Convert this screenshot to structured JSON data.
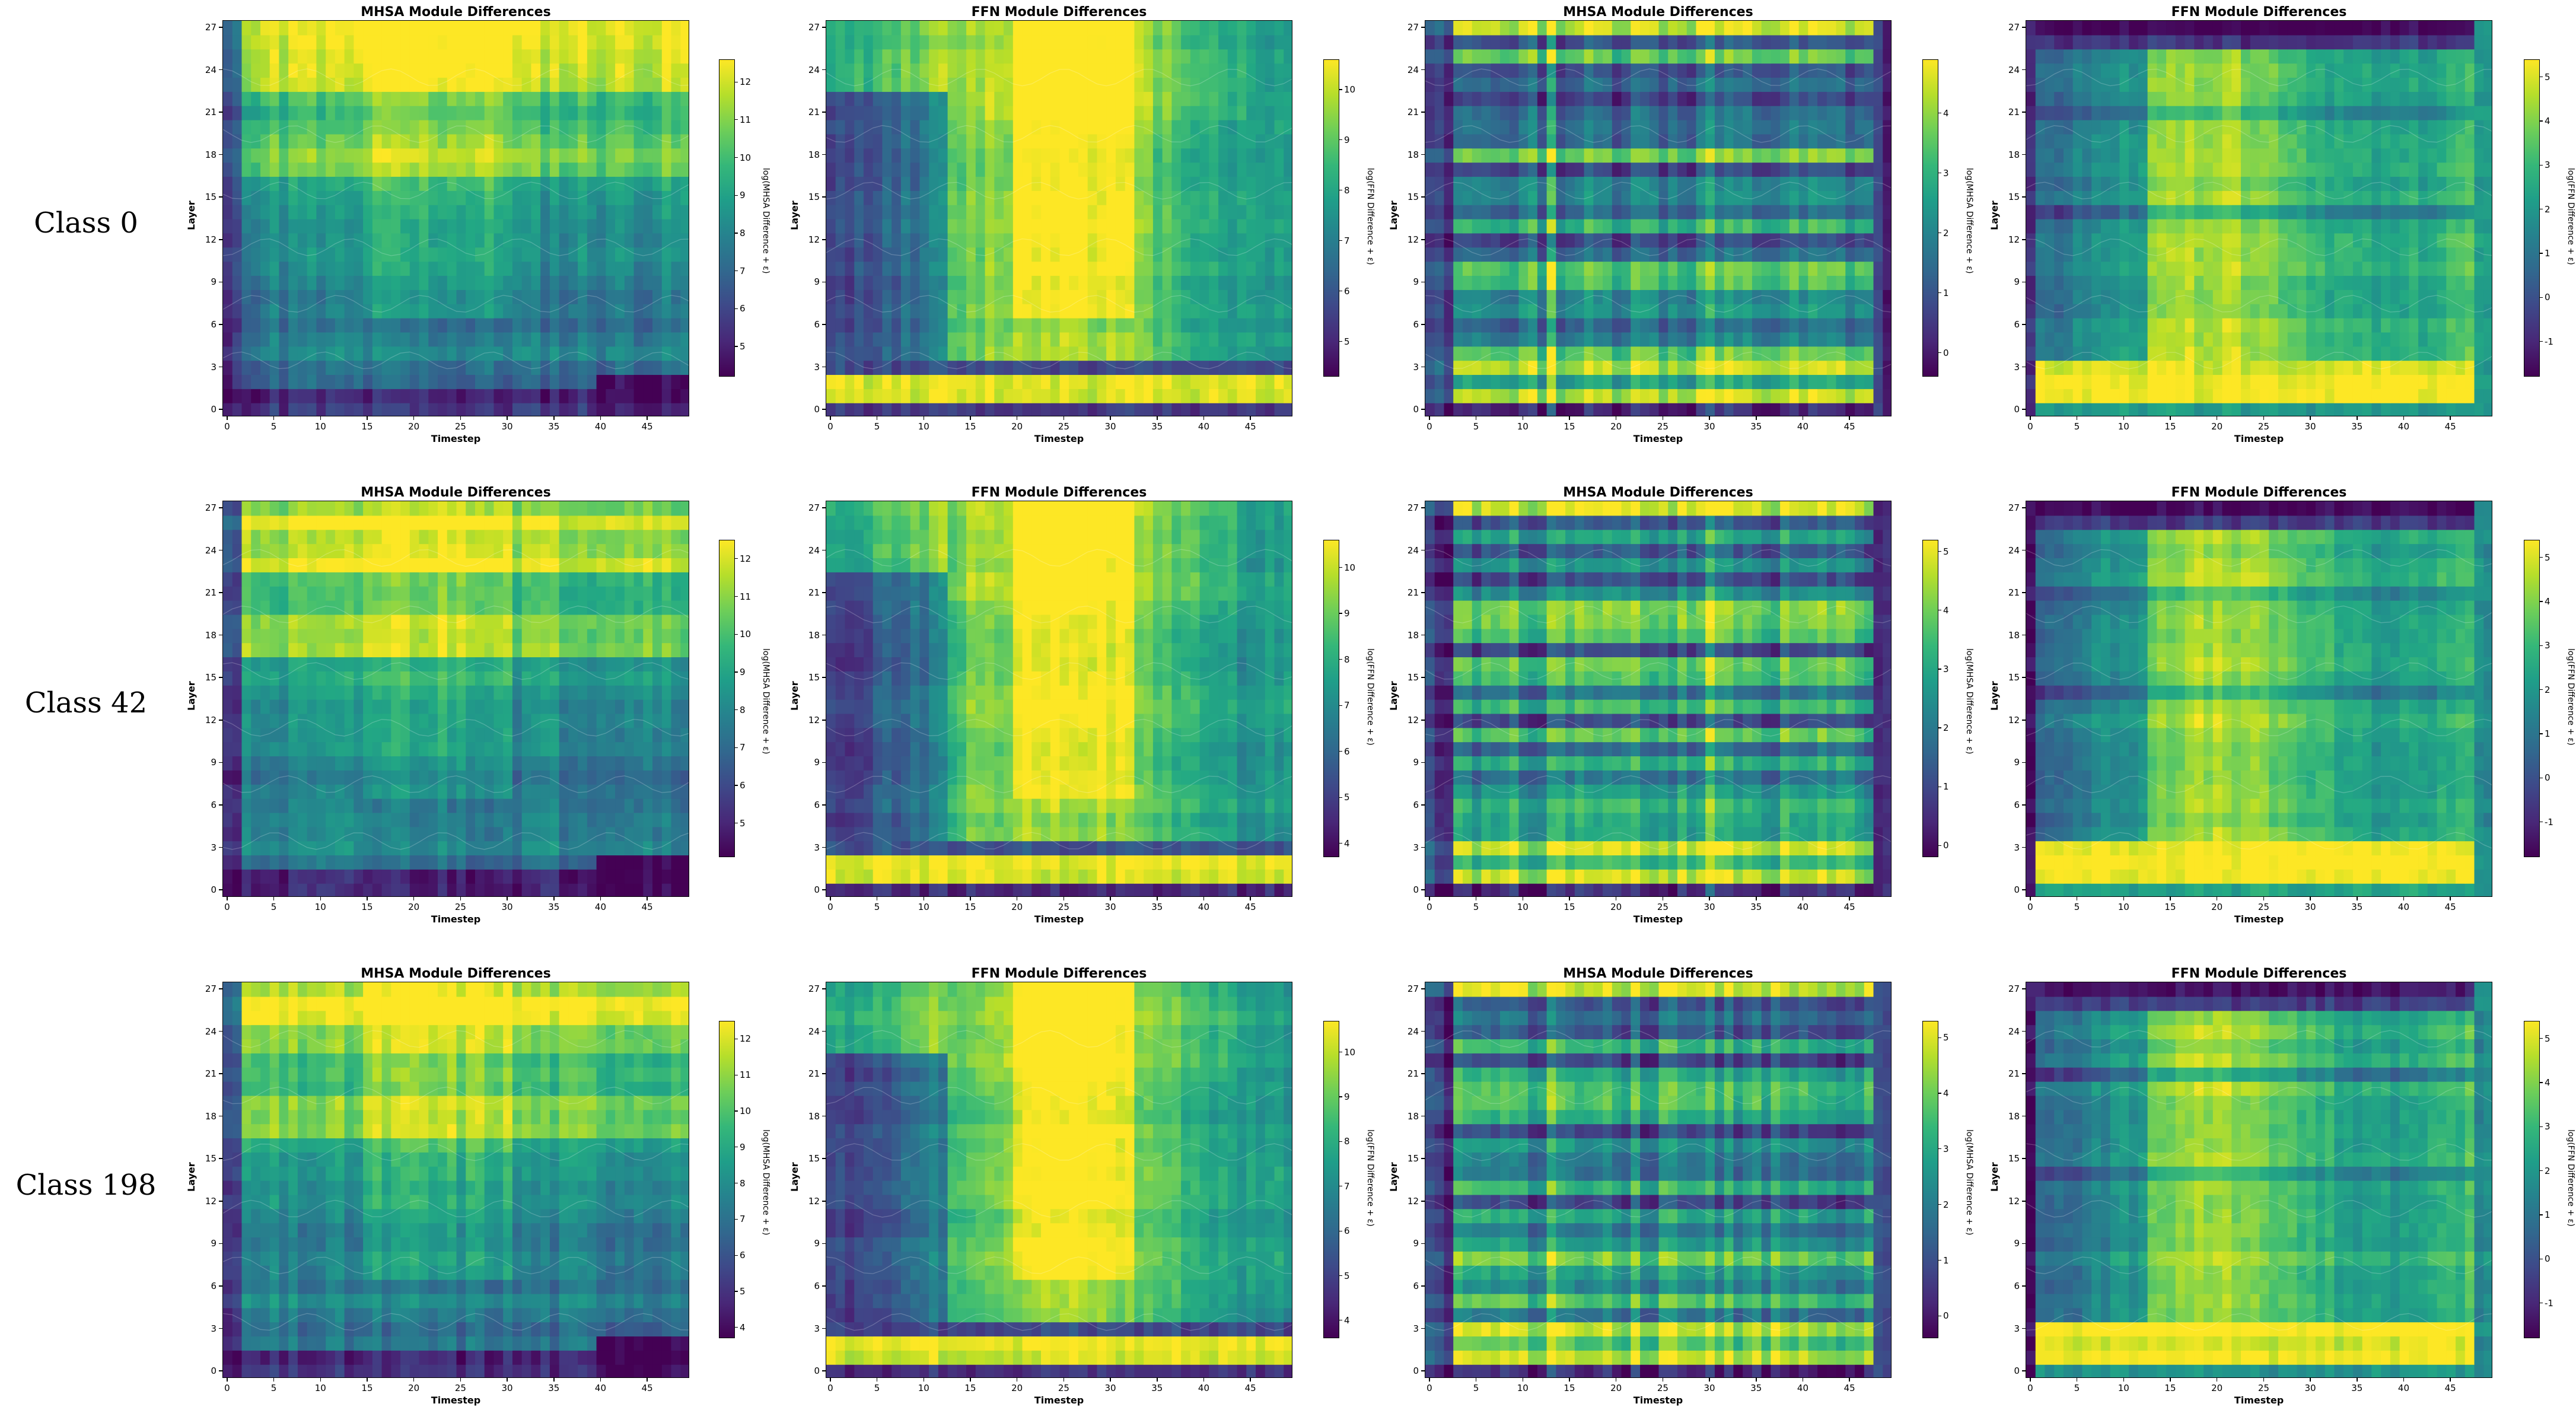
{
  "row_labels": [
    "Class 0",
    "Class 42",
    "Class 198"
  ],
  "colors": {
    "colormap": "viridis",
    "low": "#440154",
    "high": "#fde725"
  },
  "chart_data": [
    {
      "type": "heatmap",
      "row": 0,
      "col": 0,
      "title": "MHSA Module Differences",
      "xlabel": "Timestep",
      "ylabel": "Layer",
      "colorbar_label": "log(MHSA Difference + ε)",
      "x_ticks": [
        0,
        5,
        10,
        15,
        20,
        25,
        30,
        35,
        40,
        45
      ],
      "y_ticks": [
        0,
        3,
        6,
        9,
        12,
        15,
        18,
        21,
        24,
        27
      ],
      "xlim": [
        0,
        49
      ],
      "ylim": [
        0,
        27
      ],
      "cbar_ticks": [
        5,
        6,
        7,
        8,
        9,
        10,
        11,
        12
      ],
      "cbar_range": [
        4.2,
        12.6
      ],
      "pattern": "mhsa",
      "seed": 11
    },
    {
      "type": "heatmap",
      "row": 0,
      "col": 1,
      "title": "FFN Module Differences",
      "xlabel": "Timestep",
      "ylabel": "Layer",
      "colorbar_label": "log(FFN Difference + ε)",
      "x_ticks": [
        0,
        5,
        10,
        15,
        20,
        25,
        30,
        35,
        40,
        45
      ],
      "y_ticks": [
        0,
        3,
        6,
        9,
        12,
        15,
        18,
        21,
        24,
        27
      ],
      "xlim": [
        0,
        49
      ],
      "ylim": [
        0,
        27
      ],
      "cbar_ticks": [
        5,
        6,
        7,
        8,
        9,
        10
      ],
      "cbar_range": [
        4.3,
        10.6
      ],
      "pattern": "ffn",
      "seed": 12
    },
    {
      "type": "heatmap",
      "row": 0,
      "col": 2,
      "title": "MHSA Module Differences",
      "xlabel": "Timestep",
      "ylabel": "Layer",
      "colorbar_label": "log(MHSA Difference + ε)",
      "x_ticks": [
        0,
        5,
        10,
        15,
        20,
        25,
        30,
        35,
        40,
        45
      ],
      "y_ticks": [
        0,
        3,
        6,
        9,
        12,
        15,
        18,
        21,
        24,
        27
      ],
      "xlim": [
        0,
        49
      ],
      "ylim": [
        0,
        27
      ],
      "cbar_ticks": [
        0,
        1,
        2,
        3,
        4
      ],
      "cbar_range": [
        -0.4,
        4.9
      ],
      "pattern": "mhsa_norm",
      "seed": 13
    },
    {
      "type": "heatmap",
      "row": 0,
      "col": 3,
      "title": "FFN Module Differences",
      "xlabel": "Timestep",
      "ylabel": "Layer",
      "colorbar_label": "log(FFN Difference + ε)",
      "x_ticks": [
        0,
        5,
        10,
        15,
        20,
        25,
        30,
        35,
        40,
        45
      ],
      "y_ticks": [
        0,
        3,
        6,
        9,
        12,
        15,
        18,
        21,
        24,
        27
      ],
      "xlim": [
        0,
        49
      ],
      "ylim": [
        0,
        27
      ],
      "cbar_ticks": [
        -1,
        0,
        1,
        2,
        3,
        4,
        5
      ],
      "cbar_range": [
        -1.8,
        5.4
      ],
      "pattern": "ffn_norm",
      "seed": 14
    },
    {
      "type": "heatmap",
      "row": 1,
      "col": 0,
      "title": "MHSA Module Differences",
      "xlabel": "Timestep",
      "ylabel": "Layer",
      "colorbar_label": "log(MHSA Difference + ε)",
      "x_ticks": [
        0,
        5,
        10,
        15,
        20,
        25,
        30,
        35,
        40,
        45
      ],
      "y_ticks": [
        0,
        3,
        6,
        9,
        12,
        15,
        18,
        21,
        24,
        27
      ],
      "xlim": [
        0,
        49
      ],
      "ylim": [
        0,
        27
      ],
      "cbar_ticks": [
        5,
        6,
        7,
        8,
        9,
        10,
        11,
        12
      ],
      "cbar_range": [
        4.1,
        12.5
      ],
      "pattern": "mhsa",
      "seed": 21
    },
    {
      "type": "heatmap",
      "row": 1,
      "col": 1,
      "title": "FFN Module Differences",
      "xlabel": "Timestep",
      "ylabel": "Layer",
      "colorbar_label": "log(FFN Difference + ε)",
      "x_ticks": [
        0,
        5,
        10,
        15,
        20,
        25,
        30,
        35,
        40,
        45
      ],
      "y_ticks": [
        0,
        3,
        6,
        9,
        12,
        15,
        18,
        21,
        24,
        27
      ],
      "xlim": [
        0,
        49
      ],
      "ylim": [
        0,
        27
      ],
      "cbar_ticks": [
        4,
        5,
        6,
        7,
        8,
        9,
        10
      ],
      "cbar_range": [
        3.7,
        10.6
      ],
      "pattern": "ffn",
      "seed": 22
    },
    {
      "type": "heatmap",
      "row": 1,
      "col": 2,
      "title": "MHSA Module Differences",
      "xlabel": "Timestep",
      "ylabel": "Layer",
      "colorbar_label": "log(MHSA Difference + ε)",
      "x_ticks": [
        0,
        5,
        10,
        15,
        20,
        25,
        30,
        35,
        40,
        45
      ],
      "y_ticks": [
        0,
        3,
        6,
        9,
        12,
        15,
        18,
        21,
        24,
        27
      ],
      "xlim": [
        0,
        49
      ],
      "ylim": [
        0,
        27
      ],
      "cbar_ticks": [
        0,
        1,
        2,
        3,
        4,
        5
      ],
      "cbar_range": [
        -0.2,
        5.2
      ],
      "pattern": "mhsa_norm",
      "seed": 23
    },
    {
      "type": "heatmap",
      "row": 1,
      "col": 3,
      "title": "FFN Module Differences",
      "xlabel": "Timestep",
      "ylabel": "Layer",
      "colorbar_label": "log(FFN Difference + ε)",
      "x_ticks": [
        0,
        5,
        10,
        15,
        20,
        25,
        30,
        35,
        40,
        45
      ],
      "y_ticks": [
        0,
        3,
        6,
        9,
        12,
        15,
        18,
        21,
        24,
        27
      ],
      "xlim": [
        0,
        49
      ],
      "ylim": [
        0,
        27
      ],
      "cbar_ticks": [
        -1,
        0,
        1,
        2,
        3,
        4,
        5
      ],
      "cbar_range": [
        -1.8,
        5.4
      ],
      "pattern": "ffn_norm",
      "seed": 24
    },
    {
      "type": "heatmap",
      "row": 2,
      "col": 0,
      "title": "MHSA Module Differences",
      "xlabel": "Timestep",
      "ylabel": "Layer",
      "colorbar_label": "log(MHSA Difference + ε)",
      "x_ticks": [
        0,
        5,
        10,
        15,
        20,
        25,
        30,
        35,
        40,
        45
      ],
      "y_ticks": [
        0,
        3,
        6,
        9,
        12,
        15,
        18,
        21,
        24,
        27
      ],
      "xlim": [
        0,
        49
      ],
      "ylim": [
        0,
        27
      ],
      "cbar_ticks": [
        4,
        5,
        6,
        7,
        8,
        9,
        10,
        11,
        12
      ],
      "cbar_range": [
        3.7,
        12.5
      ],
      "pattern": "mhsa",
      "seed": 31
    },
    {
      "type": "heatmap",
      "row": 2,
      "col": 1,
      "title": "FFN Module Differences",
      "xlabel": "Timestep",
      "ylabel": "Layer",
      "colorbar_label": "log(FFN Difference + ε)",
      "x_ticks": [
        0,
        5,
        10,
        15,
        20,
        25,
        30,
        35,
        40,
        45
      ],
      "y_ticks": [
        0,
        3,
        6,
        9,
        12,
        15,
        18,
        21,
        24,
        27
      ],
      "xlim": [
        0,
        49
      ],
      "ylim": [
        0,
        27
      ],
      "cbar_ticks": [
        4,
        5,
        6,
        7,
        8,
        9,
        10
      ],
      "cbar_range": [
        3.6,
        10.7
      ],
      "pattern": "ffn",
      "seed": 32
    },
    {
      "type": "heatmap",
      "row": 2,
      "col": 2,
      "title": "MHSA Module Differences",
      "xlabel": "Timestep",
      "ylabel": "Layer",
      "colorbar_label": "log(MHSA Difference + ε)",
      "x_ticks": [
        0,
        5,
        10,
        15,
        20,
        25,
        30,
        35,
        40,
        45
      ],
      "y_ticks": [
        0,
        3,
        6,
        9,
        12,
        15,
        18,
        21,
        24,
        27
      ],
      "xlim": [
        0,
        49
      ],
      "ylim": [
        0,
        27
      ],
      "cbar_ticks": [
        0,
        1,
        2,
        3,
        4,
        5
      ],
      "cbar_range": [
        -0.4,
        5.3
      ],
      "pattern": "mhsa_norm",
      "seed": 33
    },
    {
      "type": "heatmap",
      "row": 2,
      "col": 3,
      "title": "FFN Module Differences",
      "xlabel": "Timestep",
      "ylabel": "Layer",
      "colorbar_label": "log(FFN Difference + ε)",
      "x_ticks": [
        0,
        5,
        10,
        15,
        20,
        25,
        30,
        35,
        40,
        45
      ],
      "y_ticks": [
        0,
        3,
        6,
        9,
        12,
        15,
        18,
        21,
        24,
        27
      ],
      "xlim": [
        0,
        49
      ],
      "ylim": [
        0,
        27
      ],
      "cbar_ticks": [
        -1,
        0,
        1,
        2,
        3,
        4,
        5
      ],
      "cbar_range": [
        -1.8,
        5.4
      ],
      "pattern": "ffn_norm",
      "seed": 34
    }
  ]
}
